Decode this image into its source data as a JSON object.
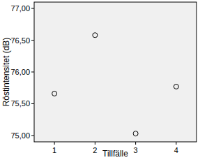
{
  "chart_data": {
    "type": "scatter",
    "x_label": "Tillfälle",
    "y_label": "Röstintensitet (dB)",
    "x": [
      1,
      2,
      3,
      4
    ],
    "values": [
      75.66,
      76.58,
      75.03,
      75.77
    ],
    "color": "#000000",
    "marker": "circle",
    "xlim": [
      0.5,
      4.5
    ],
    "xticks": [
      1,
      2,
      3,
      4
    ],
    "ylim": [
      74.9,
      77.1
    ],
    "yticks": [
      {
        "value": 75,
        "label": "75,00"
      },
      {
        "value": 75.5,
        "label": "75,50"
      },
      {
        "value": 76,
        "label": "76,00"
      },
      {
        "value": 76.5,
        "label": "76,50"
      },
      {
        "value": 77,
        "label": "77,00"
      }
    ],
    "grid": false
  }
}
